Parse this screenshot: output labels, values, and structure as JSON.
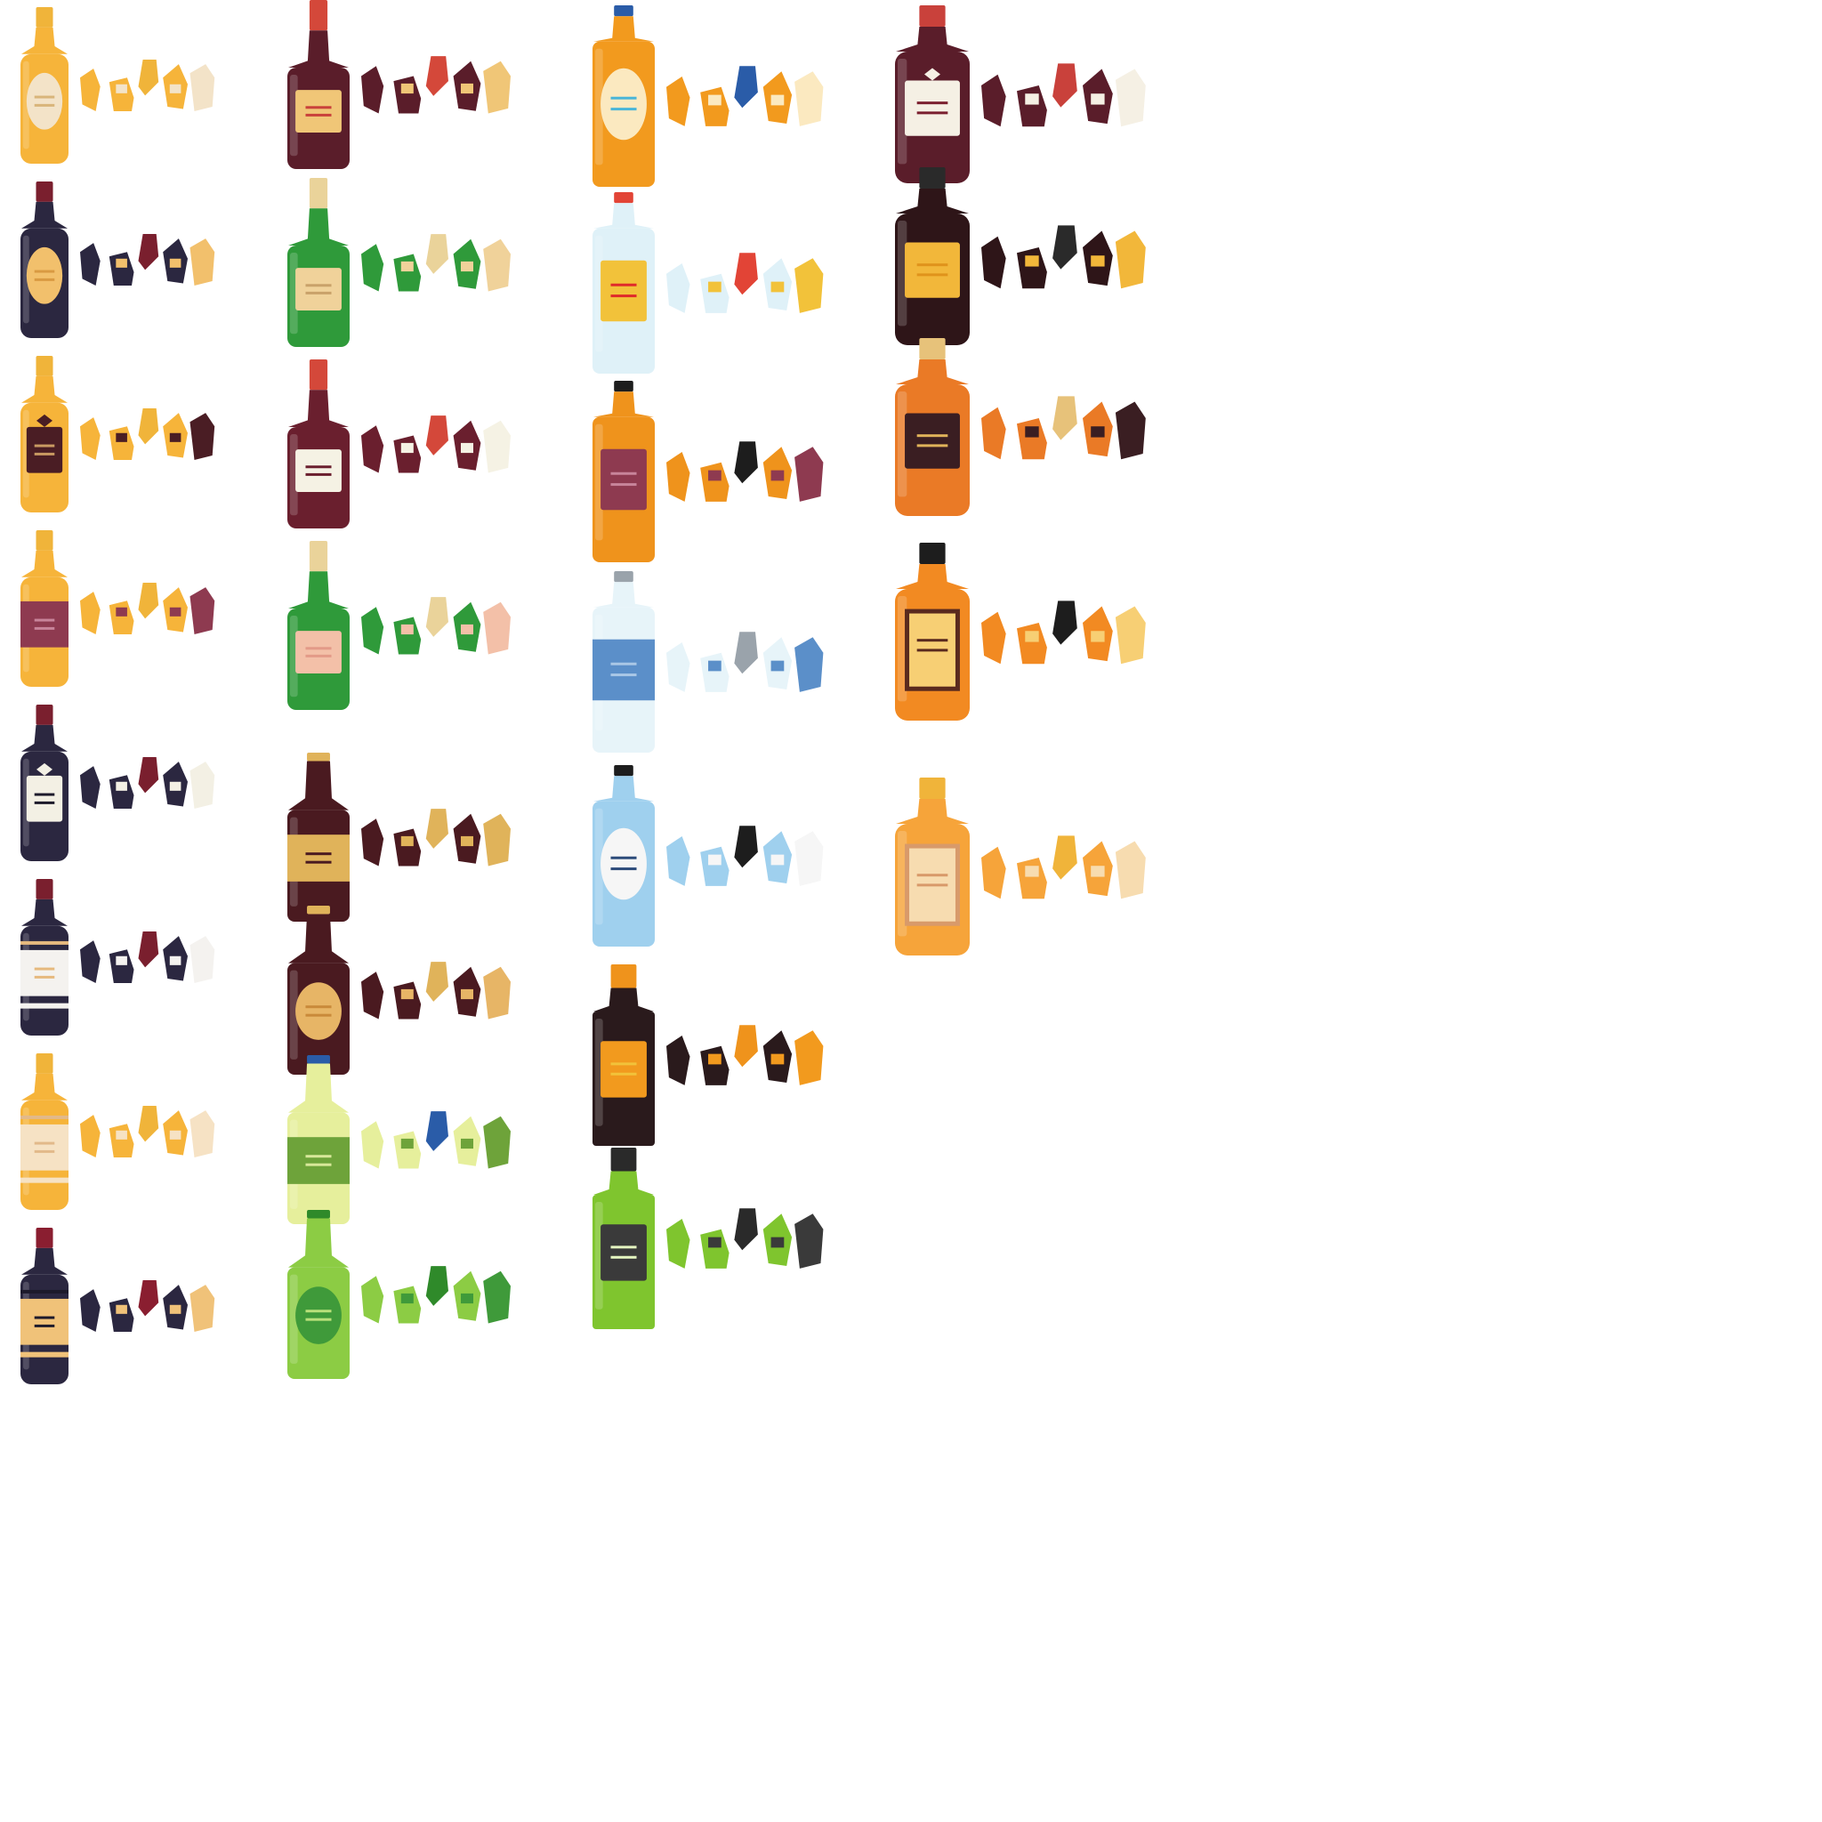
{
  "sheet": {
    "background": "#ffffff",
    "columns": [
      {
        "name": "wine-column",
        "sprites": [
          {
            "kind": "wine",
            "glass": "#f6b43a",
            "cap": "#f0b43a",
            "label": "#f3e3c8",
            "accent": "#d9b57a",
            "labelShape": "oval"
          },
          {
            "kind": "wine",
            "glass": "#2b2740",
            "cap": "#7a1f2e",
            "label": "#f2c06c",
            "accent": "#d99a42",
            "labelShape": "oval"
          },
          {
            "kind": "wine",
            "glass": "#f6b43a",
            "cap": "#f0b43a",
            "label": "#4a1d24",
            "accent": "#c99a62",
            "labelShape": "diamond"
          },
          {
            "kind": "wine",
            "glass": "#f6b43a",
            "cap": "#f0b43a",
            "label": "#8e3a50",
            "accent": "#c8849a",
            "labelShape": "band"
          },
          {
            "kind": "wine",
            "glass": "#2b2740",
            "cap": "#7a1f2e",
            "label": "#f3f0e4",
            "accent": "#1d1a2b",
            "labelShape": "diamond"
          },
          {
            "kind": "wine",
            "glass": "#2b2740",
            "cap": "#7a1f2e",
            "label": "#f4f2ef",
            "accent": "#e6b97e",
            "labelShape": "stripes"
          },
          {
            "kind": "wine",
            "glass": "#f6b43a",
            "cap": "#f0b43a",
            "label": "#f6e2c4",
            "accent": "#e2b98a",
            "labelShape": "stripes"
          },
          {
            "kind": "wine",
            "glass": "#2b2740",
            "cap": "#8a1e30",
            "label": "#f0c279",
            "accent": "#1d1a2b",
            "labelShape": "stripes"
          }
        ]
      },
      {
        "name": "champagne-beer-column",
        "sprites": [
          {
            "kind": "champagne",
            "glass": "#5a1d2a",
            "cap": "#d4483a",
            "label": "#f0c677",
            "accent": "#c9413b",
            "labelShape": "rect"
          },
          {
            "kind": "champagne",
            "glass": "#2f9a3a",
            "cap": "#ead39a",
            "label": "#f0d29a",
            "accent": "#c9a26a",
            "labelShape": "rect"
          },
          {
            "kind": "champagne",
            "glass": "#6a1f2e",
            "cap": "#d4483a",
            "label": "#f5f2e4",
            "accent": "#6a1f2e",
            "labelShape": "rect"
          },
          {
            "kind": "champagne",
            "glass": "#2f9a3a",
            "cap": "#ead39a",
            "label": "#f3c0a8",
            "accent": "#e39a88",
            "labelShape": "rect"
          },
          {
            "kind": "beer",
            "glass": "#4a1a20",
            "cap": "#e0b35a",
            "label": "#e0b35a",
            "accent": "#4a1a20",
            "labelShape": "band"
          },
          {
            "kind": "beer",
            "glass": "#4a1a20",
            "cap": "#e0b35a",
            "label": "#e7b566",
            "accent": "#c98a3a",
            "labelShape": "oval"
          },
          {
            "kind": "beer",
            "glass": "#e6ef9c",
            "cap": "#2a5ca8",
            "label": "#6ea33a",
            "accent": "#d8e89a",
            "labelShape": "band"
          },
          {
            "kind": "beer",
            "glass": "#8ccc44",
            "cap": "#2f8a2a",
            "label": "#3f9a3a",
            "accent": "#b8e07a",
            "labelShape": "oval"
          }
        ]
      },
      {
        "name": "spirits-column",
        "sprites": [
          {
            "kind": "spirit",
            "glass": "#f29a1e",
            "cap": "#2a5ca8",
            "label": "#fbe9c0",
            "accent": "#4ab6d8",
            "labelShape": "oval"
          },
          {
            "kind": "spirit",
            "glass": "#dff1f8",
            "cap": "#e24436",
            "label": "#f2c23a",
            "accent": "#e02a2a",
            "labelShape": "rect"
          },
          {
            "kind": "spirit",
            "glass": "#ef931c",
            "cap": "#1d1d1d",
            "label": "#8e3a50",
            "accent": "#c8849a",
            "labelShape": "rect"
          },
          {
            "kind": "spirit",
            "glass": "#e7f4f9",
            "cap": "#9aa3ab",
            "label": "#5b8fc9",
            "accent": "#a9c7e6",
            "labelShape": "band"
          },
          {
            "kind": "spirit",
            "glass": "#9fd0ee",
            "cap": "#1d1d1d",
            "label": "#f6f6f6",
            "accent": "#2c4b7a",
            "labelShape": "oval"
          },
          {
            "kind": "flask",
            "glass": "#2a1a1c",
            "cap": "#ef931c",
            "label": "#f29a1e",
            "accent": "#f2c23a",
            "labelShape": "rect"
          },
          {
            "kind": "flask",
            "glass": "#7fc52e",
            "cap": "#2a2a2a",
            "label": "#3a3a3a",
            "accent": "#e4f5c0",
            "labelShape": "rect"
          }
        ]
      },
      {
        "name": "liquor-column",
        "sprites": [
          {
            "kind": "liquor",
            "glass": "#5a1d2a",
            "cap": "#c9413b",
            "label": "#f5f0e4",
            "accent": "#7a1f2e",
            "labelShape": "diamond"
          },
          {
            "kind": "liquor",
            "glass": "#2e1518",
            "cap": "#2a2a2a",
            "label": "#f2b73a",
            "accent": "#e0931c",
            "labelShape": "rect"
          },
          {
            "kind": "liquor",
            "glass": "#ea7a26",
            "cap": "#e7c27a",
            "label": "#3a1e22",
            "accent": "#e0b35a",
            "labelShape": "rect"
          },
          {
            "kind": "liquor",
            "glass": "#f28a22",
            "cap": "#1d1d1d",
            "label": "#f7cf74",
            "accent": "#5a2a1e",
            "labelShape": "frame"
          },
          {
            "kind": "liquor",
            "glass": "#f6a43a",
            "cap": "#f0b43a",
            "label": "#f7dcb0",
            "accent": "#d89a6a",
            "labelShape": "frame"
          }
        ]
      }
    ]
  }
}
